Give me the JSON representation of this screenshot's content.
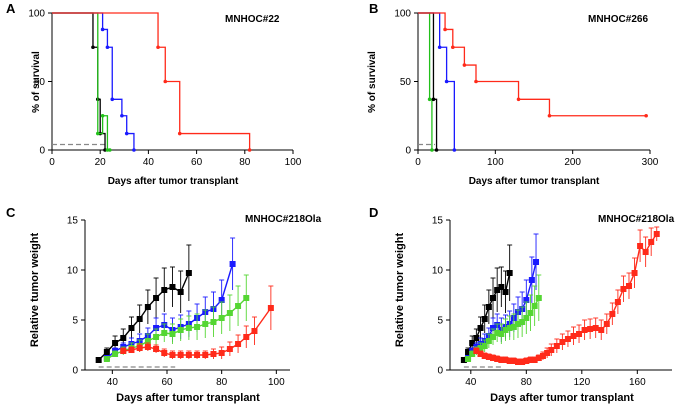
{
  "chart_data": [
    {
      "panel": "A",
      "type": "line",
      "style": "km",
      "annotation": "MNHOC#22",
      "xlabel": "Days after tumor transplant",
      "ylabel": "% of survival",
      "xlim": [
        0,
        100
      ],
      "ylim": [
        0,
        100
      ],
      "xticks": [
        0,
        20,
        40,
        60,
        80,
        100
      ],
      "yticks": [
        0,
        50,
        100
      ],
      "reference": {
        "color": "#888888",
        "x": [
          0,
          22
        ],
        "y": [
          4,
          4
        ]
      },
      "series": [
        {
          "name": "black",
          "color": "#000000",
          "x": [
            0,
            17,
            19,
            20,
            22
          ],
          "y": [
            100,
            75,
            37,
            12,
            0
          ]
        },
        {
          "name": "green",
          "color": "#22c01a",
          "x": [
            0,
            19,
            21,
            23,
            24
          ],
          "y": [
            100,
            12,
            25,
            0,
            0
          ]
        },
        {
          "name": "blue",
          "color": "#1a1aff",
          "x": [
            0,
            21,
            23,
            25,
            29,
            31,
            34
          ],
          "y": [
            100,
            88,
            75,
            37,
            25,
            12,
            0
          ]
        },
        {
          "name": "red",
          "color": "#ff2a1a",
          "x": [
            0,
            44,
            47,
            53,
            82
          ],
          "y": [
            100,
            75,
            50,
            12,
            0
          ]
        }
      ]
    },
    {
      "panel": "B",
      "type": "line",
      "style": "km",
      "annotation": "MNHOC#266",
      "xlabel": "Days after tumor transplant",
      "ylabel": "% of survival",
      "xlim": [
        0,
        300
      ],
      "ylim": [
        0,
        100
      ],
      "xticks": [
        0,
        100,
        200,
        300
      ],
      "yticks": [
        0,
        50,
        100
      ],
      "reference": {
        "color": "#888888",
        "x": [
          0,
          22
        ],
        "y": [
          4,
          4
        ]
      },
      "series": [
        {
          "name": "green",
          "color": "#22c01a",
          "x": [
            0,
            15,
            18
          ],
          "y": [
            100,
            37,
            0
          ]
        },
        {
          "name": "black",
          "color": "#000000",
          "x": [
            0,
            20,
            24
          ],
          "y": [
            100,
            37,
            0
          ]
        },
        {
          "name": "blue",
          "color": "#1a1aff",
          "x": [
            0,
            28,
            37,
            47
          ],
          "y": [
            100,
            75,
            50,
            0
          ]
        },
        {
          "name": "red",
          "color": "#ff2a1a",
          "x": [
            0,
            35,
            45,
            60,
            75,
            130,
            170,
            295
          ],
          "y": [
            100,
            88,
            75,
            62,
            50,
            37,
            25,
            25
          ]
        }
      ]
    },
    {
      "panel": "C",
      "type": "line",
      "style": "errorbar",
      "annotation": "MNHOC#218Ola",
      "xlabel": "Days after tumor transplant",
      "ylabel": "Relative tumor weight",
      "xlim": [
        30,
        105
      ],
      "ylim": [
        0,
        15
      ],
      "xticks": [
        40,
        60,
        80,
        100
      ],
      "yticks": [
        0,
        5,
        10,
        15
      ],
      "reference": {
        "color": "#888888",
        "x": [
          35,
          63
        ],
        "y": [
          0.3,
          0.3
        ]
      },
      "series": [
        {
          "name": "black",
          "color": "#000000",
          "x": [
            35,
            38,
            41,
            44,
            47,
            50,
            53,
            56,
            59,
            62,
            65,
            68
          ],
          "y": [
            1.0,
            1.8,
            2.7,
            3.2,
            4.2,
            5.1,
            6.3,
            7.2,
            8.0,
            8.3,
            7.8,
            9.7
          ],
          "err": [
            0.2,
            0.4,
            0.7,
            0.9,
            1.1,
            1.4,
            1.7,
            2.0,
            2.2,
            2.0,
            2.1,
            2.8
          ]
        },
        {
          "name": "blue",
          "color": "#1a1aff",
          "x": [
            38,
            41,
            44,
            47,
            50,
            53,
            56,
            59,
            62,
            65,
            68,
            71,
            74,
            77,
            80,
            84
          ],
          "y": [
            1.2,
            1.9,
            2.3,
            2.6,
            2.9,
            3.4,
            4.2,
            4.5,
            4.0,
            4.3,
            4.6,
            5.2,
            5.8,
            6.1,
            7.0,
            10.6
          ],
          "err": [
            0.2,
            0.3,
            0.4,
            0.6,
            0.7,
            0.8,
            1.0,
            1.1,
            1.2,
            1.2,
            1.3,
            1.4,
            1.5,
            1.7,
            2.0,
            2.6
          ]
        },
        {
          "name": "green",
          "color": "#55d633",
          "x": [
            38,
            41,
            44,
            47,
            50,
            53,
            56,
            59,
            62,
            65,
            68,
            71,
            74,
            77,
            80,
            83,
            86,
            89
          ],
          "y": [
            1.1,
            1.6,
            1.9,
            2.2,
            2.4,
            2.9,
            3.3,
            3.7,
            3.6,
            4.0,
            4.2,
            4.3,
            4.6,
            4.8,
            5.2,
            5.7,
            6.4,
            7.2
          ],
          "err": [
            0.2,
            0.3,
            0.4,
            0.5,
            0.6,
            0.7,
            0.8,
            0.9,
            1.0,
            1.1,
            1.2,
            1.3,
            1.4,
            1.5,
            1.6,
            1.8,
            2.0,
            2.3
          ]
        },
        {
          "name": "red",
          "color": "#ff2a1a",
          "x": [
            44,
            47,
            50,
            53,
            56,
            59,
            62,
            65,
            68,
            71,
            74,
            77,
            80,
            83,
            86,
            89,
            92,
            98
          ],
          "y": [
            1.9,
            2.0,
            2.2,
            2.3,
            2.1,
            1.7,
            1.5,
            1.5,
            1.5,
            1.5,
            1.5,
            1.6,
            1.7,
            2.1,
            2.6,
            3.3,
            3.9,
            6.2
          ],
          "err": [
            0.3,
            0.3,
            0.4,
            0.4,
            0.4,
            0.4,
            0.4,
            0.4,
            0.4,
            0.4,
            0.4,
            0.5,
            0.6,
            0.7,
            0.9,
            1.1,
            1.4,
            2.2
          ]
        }
      ]
    },
    {
      "panel": "D",
      "type": "line",
      "style": "errorbar",
      "annotation": "MNHOC#218Ola",
      "xlabel": "Days after tumor transplant",
      "ylabel": "Relative tumor weight",
      "xlim": [
        25,
        185
      ],
      "ylim": [
        0,
        15
      ],
      "xticks": [
        40,
        80,
        120,
        160
      ],
      "yticks": [
        0,
        5,
        10,
        15
      ],
      "reference": {
        "color": "#888888",
        "x": [
          35,
          63
        ],
        "y": [
          0.3,
          0.3
        ]
      },
      "series": [
        {
          "name": "black",
          "color": "#000000",
          "x": [
            35,
            38,
            41,
            44,
            47,
            50,
            53,
            56,
            59,
            62,
            65,
            68
          ],
          "y": [
            1.0,
            1.8,
            2.7,
            3.2,
            4.2,
            5.1,
            6.3,
            7.2,
            8.0,
            8.3,
            7.8,
            9.7
          ],
          "err": [
            0.2,
            0.4,
            0.7,
            0.9,
            1.1,
            1.4,
            1.7,
            2.0,
            2.2,
            2.0,
            2.1,
            2.8
          ]
        },
        {
          "name": "blue",
          "color": "#1a1aff",
          "x": [
            38,
            41,
            44,
            47,
            50,
            53,
            56,
            59,
            62,
            65,
            68,
            71,
            74,
            77,
            80,
            84,
            87
          ],
          "y": [
            1.2,
            1.9,
            2.3,
            2.6,
            2.9,
            3.4,
            4.2,
            4.5,
            4.0,
            4.3,
            4.6,
            5.2,
            5.8,
            6.1,
            7.0,
            9.0,
            10.8
          ],
          "err": [
            0.2,
            0.3,
            0.4,
            0.6,
            0.7,
            0.8,
            1.0,
            1.1,
            1.2,
            1.2,
            1.3,
            1.4,
            1.5,
            1.7,
            2.0,
            2.3,
            2.8
          ]
        },
        {
          "name": "green",
          "color": "#55d633",
          "x": [
            38,
            41,
            44,
            47,
            50,
            53,
            56,
            59,
            62,
            65,
            68,
            71,
            74,
            77,
            80,
            83,
            86,
            89
          ],
          "y": [
            1.1,
            1.6,
            1.9,
            2.2,
            2.4,
            2.9,
            3.3,
            3.7,
            3.6,
            4.0,
            4.2,
            4.3,
            4.6,
            4.8,
            5.2,
            5.7,
            6.4,
            7.2
          ],
          "err": [
            0.2,
            0.3,
            0.4,
            0.5,
            0.6,
            0.7,
            0.8,
            0.9,
            1.0,
            1.1,
            1.2,
            1.3,
            1.4,
            1.5,
            1.6,
            1.8,
            2.0,
            2.3
          ]
        },
        {
          "name": "red",
          "color": "#ff2a1a",
          "x": [
            44,
            47,
            50,
            53,
            56,
            59,
            62,
            65,
            68,
            71,
            74,
            77,
            80,
            83,
            86,
            89,
            92,
            95,
            98,
            102,
            106,
            110,
            114,
            118,
            122,
            126,
            130,
            134,
            138,
            142,
            146,
            150,
            154,
            158,
            162,
            166,
            170,
            174
          ],
          "y": [
            1.9,
            1.6,
            1.4,
            1.3,
            1.2,
            1.1,
            1.0,
            1.0,
            0.9,
            0.9,
            0.8,
            0.8,
            0.9,
            1.0,
            1.0,
            1.2,
            1.4,
            1.7,
            2.0,
            2.4,
            2.8,
            3.1,
            3.4,
            3.6,
            4.0,
            4.1,
            4.2,
            4.0,
            4.6,
            5.6,
            6.8,
            8.1,
            8.4,
            9.7,
            12.4,
            11.8,
            12.8,
            13.6
          ],
          "err": [
            0.3,
            0.3,
            0.3,
            0.3,
            0.3,
            0.3,
            0.3,
            0.3,
            0.3,
            0.3,
            0.3,
            0.3,
            0.3,
            0.3,
            0.3,
            0.3,
            0.4,
            0.5,
            0.6,
            0.7,
            0.8,
            0.8,
            0.9,
            0.9,
            1.0,
            1.0,
            1.0,
            1.0,
            1.0,
            1.1,
            1.2,
            1.3,
            1.3,
            1.5,
            1.6,
            1.5,
            1.4,
            0.7
          ]
        }
      ]
    }
  ]
}
